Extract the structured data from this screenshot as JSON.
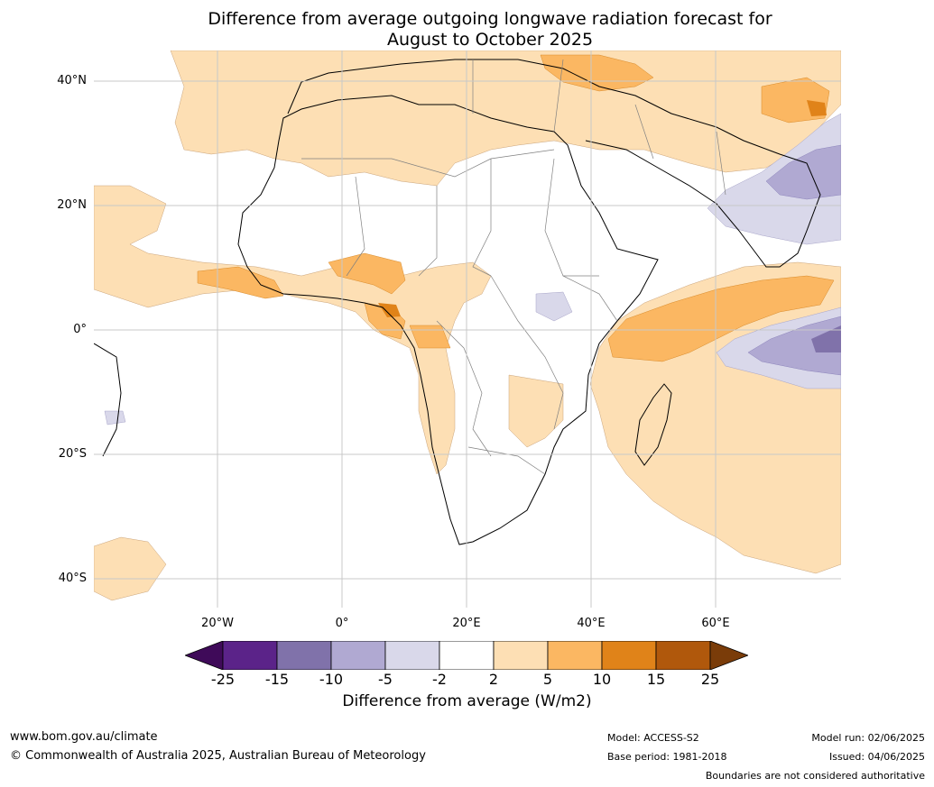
{
  "title": {
    "line1": "Difference from average outgoing longwave radiation forecast for",
    "line2": "August to October 2025"
  },
  "map": {
    "latitude_labels": [
      "40°N",
      "20°N",
      "0°",
      "20°S",
      "40°S"
    ],
    "longitude_labels": [
      "20°W",
      "0°",
      "20°E",
      "40°E",
      "60°E"
    ]
  },
  "colorbar": {
    "title": "Difference from average (W/m2)",
    "ticks": [
      "-25",
      "-15",
      "-10",
      "-5",
      "-2",
      "2",
      "5",
      "10",
      "15",
      "25"
    ],
    "bins": [
      {
        "range": "< -25",
        "color": "#3f0a59"
      },
      {
        "range": "-25 to -15",
        "color": "#5b2389"
      },
      {
        "range": "-15 to -10",
        "color": "#8072aa"
      },
      {
        "range": "-10 to -5",
        "color": "#b0a9d2"
      },
      {
        "range": "-5 to -2",
        "color": "#d9d8ea"
      },
      {
        "range": "-2 to 2",
        "color": "#ffffff"
      },
      {
        "range": "2 to 5",
        "color": "#fddfb4"
      },
      {
        "range": "5 to 10",
        "color": "#fbb762"
      },
      {
        "range": "10 to 15",
        "color": "#e08319"
      },
      {
        "range": "15 to 25",
        "color": "#b0580c"
      },
      {
        "range": "> 25",
        "color": "#7a3c09"
      }
    ]
  },
  "footer": {
    "website": "www.bom.gov.au/climate",
    "copyright": "© Commonwealth of Australia 2025, Australian Bureau of Meteorology",
    "model": "Model: ACCESS-S2",
    "base_period": "Base period: 1981-2018",
    "model_run": "Model run: 02/06/2025",
    "issued": "Issued: 04/06/2025",
    "disclaimer": "Boundaries are not considered authoritative"
  }
}
